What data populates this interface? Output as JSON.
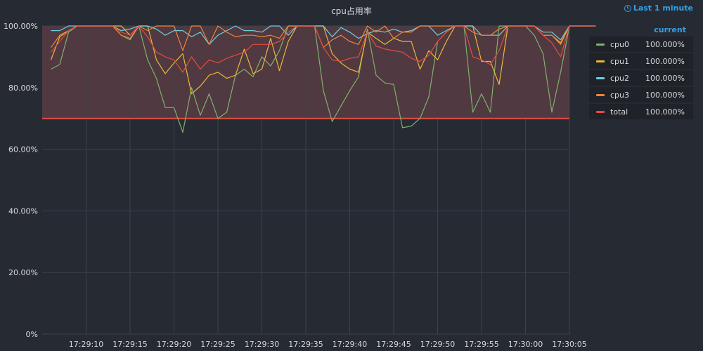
{
  "panel": {
    "title": "cpu占用率"
  },
  "time_picker": {
    "label": "Last 1 minute",
    "icon": "clock-icon"
  },
  "legend": {
    "header": "current",
    "items": [
      {
        "name": "cpu0",
        "value": "100.000%",
        "color": "#7eb26d"
      },
      {
        "name": "cpu1",
        "value": "100.000%",
        "color": "#eab839"
      },
      {
        "name": "cpu2",
        "value": "100.000%",
        "color": "#6ed0e0"
      },
      {
        "name": "cpu3",
        "value": "100.000%",
        "color": "#ef843c"
      },
      {
        "name": "total",
        "value": "100.000%",
        "color": "#e24d42"
      }
    ]
  },
  "chart_data": {
    "type": "line",
    "title": "cpu占用率",
    "xlabel": "",
    "ylabel": "",
    "ylim": [
      0,
      100
    ],
    "y_ticks": [
      "0%",
      "20.00%",
      "40.00%",
      "60.00%",
      "80.00%",
      "100.00%"
    ],
    "x_ticks": [
      "17:29:10",
      "17:29:15",
      "17:29:20",
      "17:29:25",
      "17:29:30",
      "17:29:35",
      "17:29:40",
      "17:29:45",
      "17:29:50",
      "17:29:55",
      "17:30:00",
      "17:30:05"
    ],
    "x_start": "17:29:05",
    "x_end": "17:30:05",
    "sample_interval_s": 1,
    "threshold": {
      "value": 70,
      "color": "#e24d42",
      "fill": "rgba(234,112,112,0.22)"
    },
    "grid": true,
    "legend_position": "right",
    "series": [
      {
        "name": "cpu0",
        "color": "#7eb26d",
        "values": [
          86,
          87.5,
          98,
          100,
          100,
          100,
          100,
          100,
          97,
          95.5,
          100,
          89,
          83,
          73.5,
          73.5,
          65.5,
          80,
          71,
          78,
          70,
          72,
          84,
          86,
          83.5,
          90,
          87,
          92,
          100,
          100,
          100,
          100,
          79,
          69,
          74,
          79,
          83.5,
          99,
          84,
          81.5,
          81,
          67,
          67.5,
          70,
          77,
          95,
          98,
          100,
          100,
          72,
          78,
          72,
          100,
          100,
          100,
          100,
          97,
          91,
          72,
          85,
          100,
          100,
          100,
          100
        ]
      },
      {
        "name": "cpu1",
        "color": "#eab839",
        "values": [
          89,
          96.5,
          98.5,
          100,
          100,
          100,
          100,
          100,
          100,
          97,
          100,
          100,
          89,
          84.5,
          88,
          91,
          78,
          80.5,
          84,
          85,
          83,
          84,
          92.5,
          84.5,
          86,
          96,
          85.5,
          95,
          100,
          100,
          100,
          100,
          91,
          88,
          86,
          85,
          98,
          96,
          94,
          96,
          95,
          95,
          86,
          92,
          89,
          95,
          100,
          100,
          100,
          88.5,
          88.5,
          81,
          100,
          100,
          100,
          100,
          97,
          97,
          94.5,
          100,
          100,
          100,
          100
        ]
      },
      {
        "name": "cpu2",
        "color": "#6ed0e0",
        "values": [
          98.5,
          98.5,
          100,
          100,
          100,
          100,
          100,
          100,
          98.5,
          99,
          100,
          100,
          99,
          97,
          98.5,
          98.5,
          96.5,
          98,
          94,
          97,
          98.5,
          100,
          98.5,
          98.5,
          98,
          100,
          100,
          97,
          100,
          100,
          100,
          100,
          96.5,
          99.5,
          98,
          96,
          97.5,
          98.5,
          98,
          99,
          98,
          98.5,
          100,
          100,
          97,
          98.5,
          100,
          100,
          100,
          97,
          97,
          97,
          100,
          100,
          100,
          100,
          98,
          98,
          95.5,
          100,
          100,
          100,
          100
        ]
      },
      {
        "name": "cpu3",
        "color": "#ef843c",
        "values": [
          93,
          97,
          98.5,
          100,
          100,
          100,
          100,
          100,
          97,
          96,
          100,
          98.5,
          100,
          100,
          100,
          92,
          100,
          100,
          94,
          100,
          98,
          96.5,
          97,
          97,
          96.5,
          97,
          96,
          100,
          100,
          100,
          100,
          93,
          95.5,
          97,
          95,
          94,
          100,
          98,
          100,
          96,
          98,
          98,
          100,
          100,
          100,
          100,
          100,
          100,
          98,
          97,
          97,
          99,
          100,
          100,
          100,
          100,
          97,
          97,
          94,
          100,
          100,
          100,
          100
        ]
      },
      {
        "name": "total",
        "color": "#e24d42",
        "values": [
          91.5,
          95,
          98.5,
          100,
          100,
          100,
          100,
          100,
          98,
          97,
          100,
          96.5,
          91.5,
          90,
          89,
          85,
          90,
          86,
          89,
          88,
          89.5,
          90.5,
          91.5,
          94,
          94,
          94,
          95,
          98,
          100,
          100,
          100,
          93,
          89,
          88.5,
          89.5,
          90,
          98,
          93.5,
          92.5,
          92,
          91.5,
          89.5,
          88.5,
          90.5,
          95,
          98,
          100,
          100,
          90,
          89,
          87.5,
          92,
          100,
          100,
          100,
          100,
          97,
          94.5,
          90,
          100,
          100,
          100,
          100
        ]
      }
    ]
  }
}
